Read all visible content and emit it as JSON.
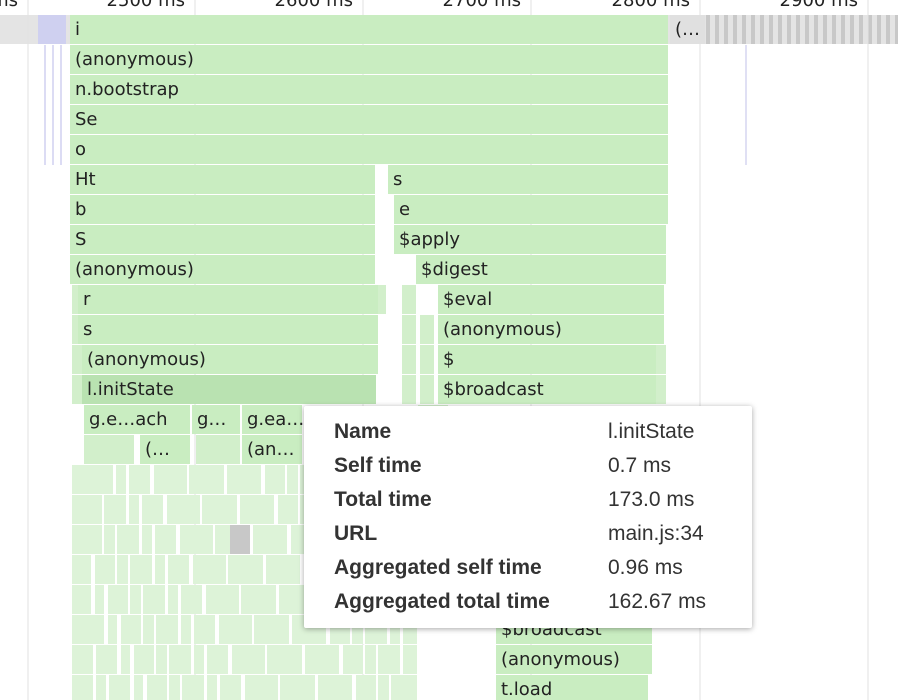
{
  "ruler": [
    "ms",
    "2500 ms",
    "2600 ms",
    "2700 ms",
    "2800 ms",
    "2900 ms"
  ],
  "frames": [
    "i",
    "(…",
    "(anonymous)",
    "n.bootstrap",
    "Se",
    "o",
    "Ht",
    "s",
    "b",
    "e",
    "S",
    "$apply",
    "(anonymous)",
    "$digest",
    "r",
    "$eval",
    "s",
    "(anonymous)",
    "(anonymous)",
    "$",
    "l.initState",
    "$broadcast",
    "g.e…ach",
    "g…",
    "g.ea…",
    "(…",
    "(an…",
    "$broadcast",
    "(anonymous)",
    "t.load"
  ],
  "tooltip": {
    "rows": [
      {
        "label": "Name",
        "value": "l.initState"
      },
      {
        "label": "Self time",
        "value": "0.7 ms"
      },
      {
        "label": "Total time",
        "value": "173.0 ms"
      },
      {
        "label": "URL",
        "value": "main.js:34"
      },
      {
        "label": "Aggregated self time",
        "value": "0.96 ms"
      },
      {
        "label": "Aggregated total time",
        "value": "162.67 ms"
      }
    ]
  }
}
